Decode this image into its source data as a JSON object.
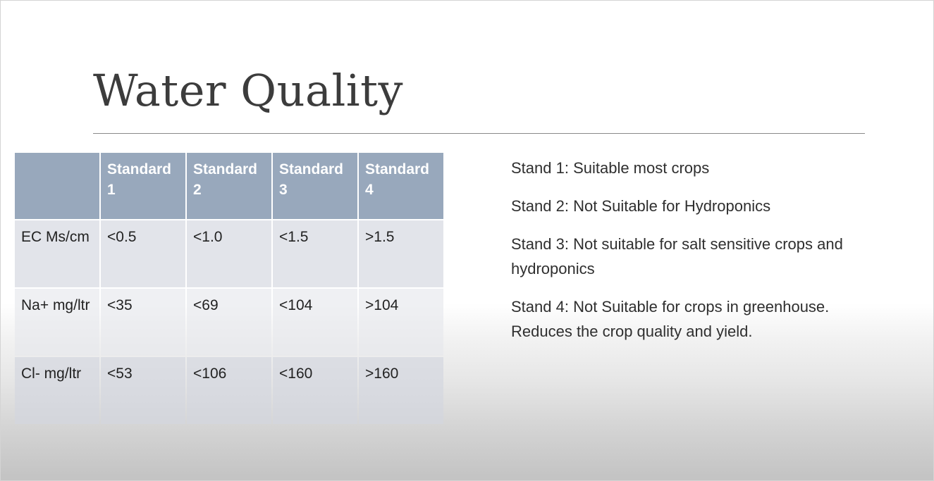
{
  "slide": {
    "title": "Water Quality"
  },
  "table": {
    "headers": [
      "",
      "Standard 1",
      "Standard 2",
      "Standard 3",
      "Standard 4"
    ],
    "rows": [
      {
        "label": "EC Ms/cm",
        "values": [
          "<0.5",
          "<1.0",
          "<1.5",
          ">1.5"
        ]
      },
      {
        "label": "Na+ mg/ltr",
        "values": [
          "<35",
          "<69",
          "<104",
          ">104"
        ]
      },
      {
        "label": "Cl- mg/ltr",
        "values": [
          "<53",
          "<106",
          "<160",
          ">160"
        ]
      }
    ]
  },
  "notes": [
    "Stand 1: Suitable most crops",
    "Stand 2: Not Suitable for Hydroponics",
    "Stand 3: Not suitable for salt sensitive crops and hydroponics",
    "Stand 4: Not Suitable for crops in greenhouse. Reduces the crop quality and yield."
  ],
  "colors": {
    "header_fill": "#98a8bc",
    "row_fill_dark": "#d2d6de",
    "row_fill_light": "#e5e7ec",
    "title_text": "#3c3c3c"
  }
}
